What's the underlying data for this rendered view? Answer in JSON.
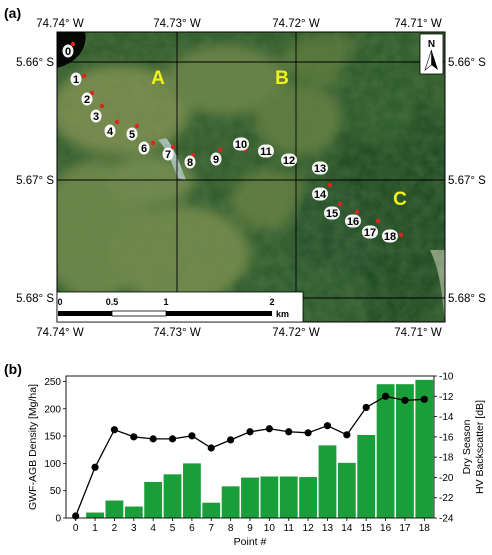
{
  "panel_a": {
    "label": "(a)",
    "lon_ticks": [
      "74.74° W",
      "74.73° W",
      "74.72° W",
      "74.71° W"
    ],
    "lat_ticks": [
      "5.66° S",
      "5.67° S",
      "5.68° S"
    ],
    "regions": [
      "A",
      "B",
      "C"
    ],
    "north_arrow": "N",
    "scale_bar": {
      "ticks": [
        "0",
        "0.5",
        "1",
        "2"
      ],
      "unit": "km"
    },
    "points": [
      "0",
      "1",
      "2",
      "3",
      "4",
      "5",
      "6",
      "7",
      "8",
      "9",
      "10",
      "11",
      "12",
      "13",
      "14",
      "15",
      "16",
      "17",
      "18"
    ],
    "colors": {
      "forest": "#2f5f2a",
      "pasture": "#6f8a4a",
      "water": "#c9dce8",
      "marker": "#e0241c"
    }
  },
  "panel_b": {
    "label": "(b)",
    "chart_data": {
      "type": "bar",
      "x": [
        "0",
        "1",
        "2",
        "3",
        "4",
        "5",
        "6",
        "7",
        "8",
        "9",
        "10",
        "11",
        "12",
        "13",
        "14",
        "15",
        "16",
        "17",
        "18"
      ],
      "xlabel": "Point #",
      "series": [
        {
          "name": "GWF-AGB Density",
          "type": "bar",
          "axis": "left",
          "color": "#1a9e3a",
          "values": [
            0,
            10,
            32,
            21,
            66,
            80,
            100,
            28,
            58,
            74,
            76,
            76,
            75,
            133,
            101,
            152,
            245,
            245,
            253
          ]
        },
        {
          "name": "Dry Season HV Backscatter",
          "type": "line",
          "axis": "right",
          "color": "#000000",
          "values": [
            -23.8,
            -19.0,
            -15.3,
            -16.0,
            -16.2,
            -16.2,
            -15.9,
            -17.1,
            -16.3,
            -15.5,
            -15.2,
            -15.5,
            -15.6,
            -14.9,
            -15.8,
            -13.1,
            -12.0,
            -12.4,
            -12.3
          ]
        }
      ],
      "ylabel": "GWF-AGB Density [Mg/ha]",
      "ylim": [
        0,
        260
      ],
      "yticks": [
        0,
        50,
        100,
        150,
        200,
        250
      ],
      "y2label_top": "Dry Season",
      "y2label_bottom": "HV Backscatter [dB]",
      "y2lim": [
        -24,
        -10
      ],
      "y2ticks": [
        -24,
        -22,
        -20,
        -18,
        -16,
        -14,
        -12,
        -10
      ],
      "grid": false
    }
  }
}
